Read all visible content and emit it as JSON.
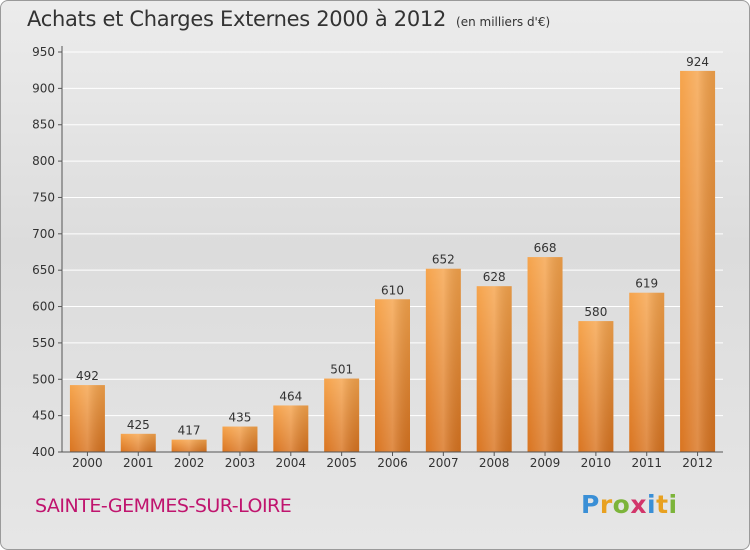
{
  "header": {
    "title": "Achats et Charges Externes 2000 à 2012",
    "unit": "(en milliers d'€)"
  },
  "footer": {
    "commune": "SAINTE-GEMMES-SUR-LOIRE",
    "brand_letters": [
      "P",
      "r",
      "o",
      "x",
      "i",
      "t",
      "i"
    ],
    "brand_colors": [
      "#3a8fd6",
      "#e8a120",
      "#7cb43a",
      "#d2356a",
      "#3a8fd6",
      "#e8a120",
      "#7cb43a"
    ]
  },
  "colors": {
    "bar_light": "#f6a44c",
    "bar_dark": "#d97420",
    "grid": "#ffffff",
    "axis": "#555555"
  },
  "chart_data": {
    "type": "bar",
    "categories": [
      "2000",
      "2001",
      "2002",
      "2003",
      "2004",
      "2005",
      "2006",
      "2007",
      "2008",
      "2009",
      "2010",
      "2011",
      "2012"
    ],
    "values": [
      492,
      425,
      417,
      435,
      464,
      501,
      610,
      652,
      628,
      668,
      580,
      619,
      924
    ],
    "ylim": [
      400,
      950
    ],
    "yticks": [
      400,
      450,
      500,
      550,
      600,
      650,
      700,
      750,
      800,
      850,
      900,
      950
    ],
    "grid": true
  }
}
